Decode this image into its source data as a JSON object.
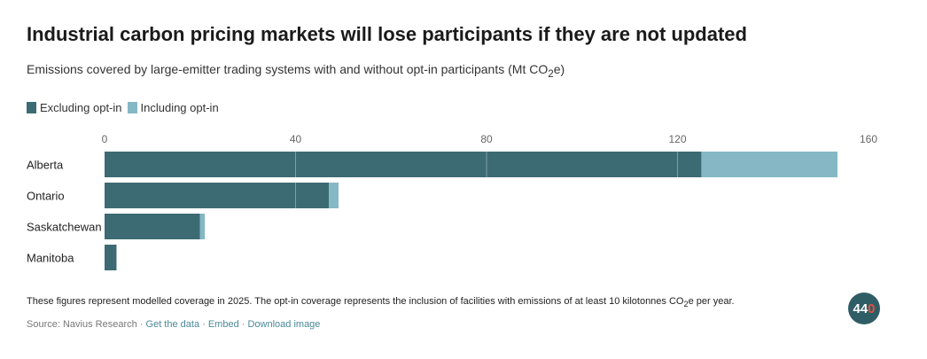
{
  "title": "Industrial carbon pricing markets will lose participants if they are not updated",
  "subtitle_pre": "Emissions covered by large-emitter trading systems with and without opt-in participants (Mt CO",
  "subtitle_sub": "2",
  "subtitle_post": "e)",
  "legend": [
    {
      "label": "Excluding opt-in",
      "color": "#3d6b73"
    },
    {
      "label": "Including opt-in",
      "color": "#85b8c4"
    }
  ],
  "note_pre": "These figures represent modelled coverage in 2025. The opt-in coverage represents the inclusion of facilities with emissions of at least 10 kilotonnes CO",
  "note_sub": "2",
  "note_post": "e per year.",
  "source_label": "Source: Navius Research",
  "links": [
    "Get the data",
    "Embed",
    "Download image"
  ],
  "logo_text": "4",
  "logo_mid": "4",
  "logo_end": "0",
  "chart_data": {
    "type": "bar",
    "orientation": "horizontal",
    "stacked": true,
    "categories": [
      "Alberta",
      "Ontario",
      "Saskatchewan",
      "Manitoba"
    ],
    "series": [
      {
        "name": "Excluding opt-in",
        "values": [
          125,
          47,
          20,
          2.5
        ],
        "color": "#3d6b73"
      },
      {
        "name": "Including opt-in",
        "values": [
          28.5,
          2,
          1,
          0
        ],
        "color": "#85b8c4"
      }
    ],
    "xlim": [
      0,
      160
    ],
    "xticks": [
      0,
      40,
      80,
      120,
      160
    ],
    "grid": true,
    "legend_position": "top-left"
  }
}
